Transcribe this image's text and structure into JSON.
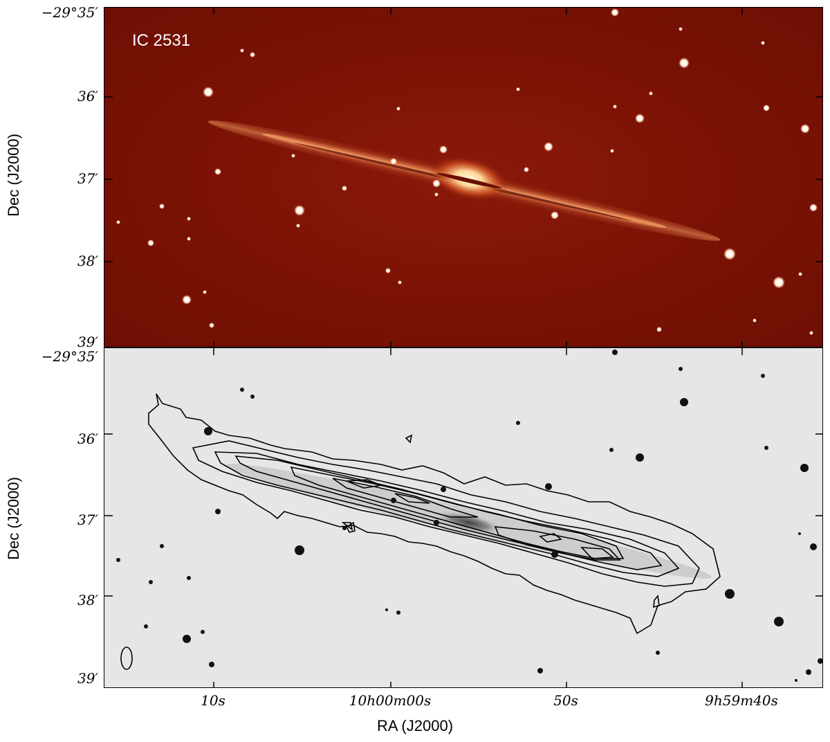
{
  "top_panel": {
    "object_label": "IC 2531",
    "ylabel": "Dec (J2000)",
    "y_ticks": [
      "−29°35′",
      "36′",
      "37′",
      "38′",
      "39′"
    ]
  },
  "bottom_panel": {
    "ylabel": "Dec (J2000)",
    "y_ticks": [
      "−29°35′",
      "36′",
      "37′",
      "38′",
      "39′"
    ],
    "x_ticks": [
      "10s",
      "10h00m00s",
      "50s",
      "9h59m40s"
    ],
    "xlabel": "RA (J2000)"
  },
  "colors": {
    "top_background": "#7a1205",
    "galaxy_core": "#fff2c8",
    "bottom_background": "#e6e6e6",
    "contour": "#000000"
  }
}
